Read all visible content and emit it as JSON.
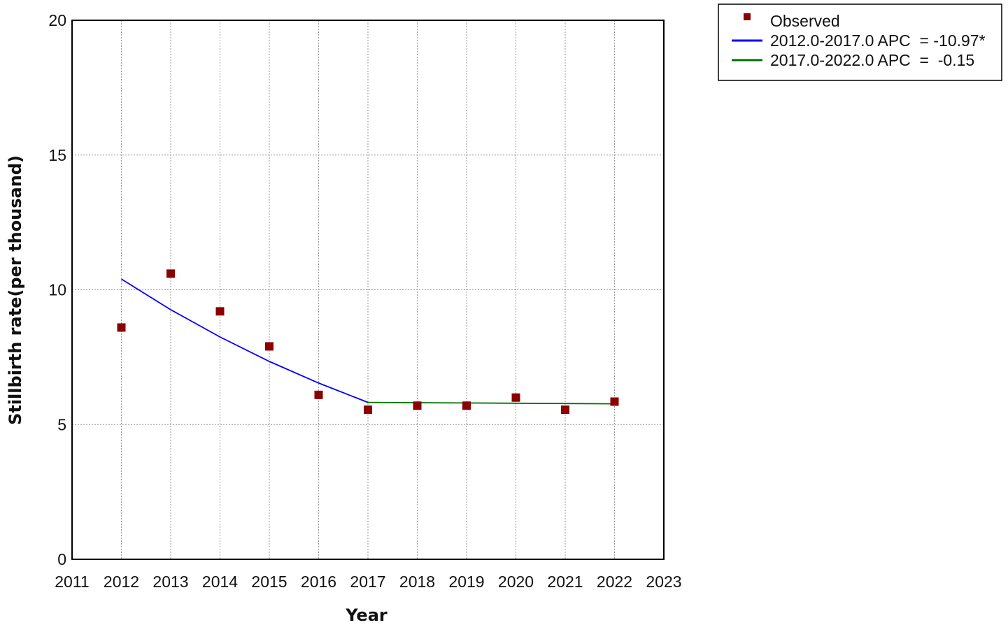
{
  "chart_data": {
    "type": "scatter",
    "title": "",
    "xlabel": "Year",
    "ylabel": "Stillbirth rate(per thousand)",
    "xlim": [
      2011,
      2023
    ],
    "ylim": [
      0,
      20
    ],
    "x_ticks": [
      "2011",
      "2012",
      "2013",
      "2014",
      "2015",
      "2016",
      "2017",
      "2018",
      "2019",
      "2020",
      "2021",
      "2022",
      "2023"
    ],
    "y_ticks": [
      "0",
      "5",
      "10",
      "15",
      "20"
    ],
    "grid": true,
    "legend_position": "top-right outside",
    "series": [
      {
        "name": "Observed",
        "kind": "markers",
        "marker": "square",
        "color": "#8b0000",
        "x": [
          2012,
          2013,
          2014,
          2015,
          2016,
          2017,
          2018,
          2019,
          2020,
          2021,
          2022
        ],
        "y": [
          8.6,
          10.6,
          9.2,
          7.9,
          6.1,
          5.55,
          5.7,
          5.7,
          6.0,
          5.55,
          5.85
        ]
      },
      {
        "name": "2012.0-2017.0 APC  = -10.97*",
        "kind": "line",
        "color": "#0000ff",
        "x": [
          2012,
          2013,
          2014,
          2015,
          2016,
          2017
        ],
        "y": [
          10.4,
          9.26,
          8.25,
          7.34,
          6.54,
          5.82
        ]
      },
      {
        "name": "2017.0-2022.0 APC  =  -0.15",
        "kind": "line",
        "color": "#007000",
        "x": [
          2017,
          2018,
          2019,
          2020,
          2021,
          2022
        ],
        "y": [
          5.82,
          5.81,
          5.8,
          5.79,
          5.78,
          5.77
        ]
      }
    ]
  }
}
